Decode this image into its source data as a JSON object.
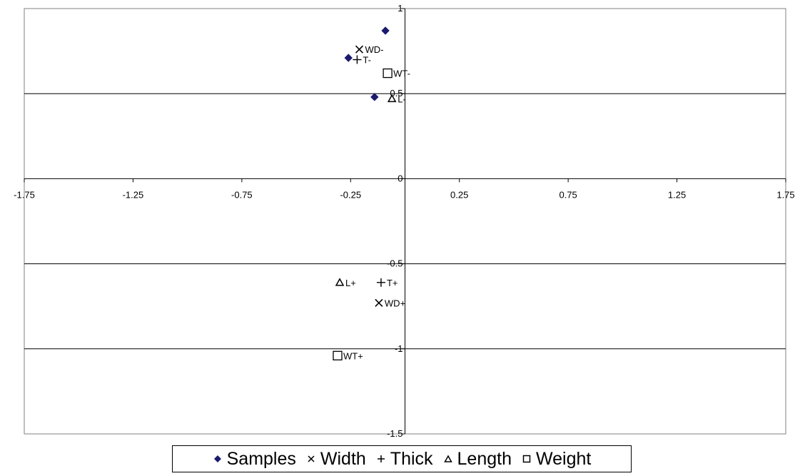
{
  "chart_data": {
    "type": "scatter",
    "title": "",
    "xlabel": "",
    "ylabel": "",
    "xlim": [
      -1.75,
      1.75
    ],
    "ylim": [
      -1.5,
      1
    ],
    "x_ticks": [
      -1.75,
      -1.25,
      -0.75,
      -0.25,
      0.25,
      0.75,
      1.25,
      1.75
    ],
    "x_tick_labels": [
      "-1.75",
      "-1.25",
      "-0.75",
      "-0.25",
      "0.25",
      "0.75",
      "1.25",
      "1.75"
    ],
    "y_ticks": [
      -1.5,
      -1,
      -0.5,
      0,
      0.5,
      1
    ],
    "y_tick_labels": [
      "-1.5",
      "-1",
      "-0.5",
      "0",
      "0.5",
      "1"
    ],
    "y_gridlines": [
      -1,
      -0.5,
      0.5
    ],
    "legend_position": "bottom",
    "series": [
      {
        "name": "Samples",
        "marker": "diamond",
        "color": "#1a1a6e",
        "points": [
          {
            "x": -0.09,
            "y": 0.87,
            "label": ""
          },
          {
            "x": -0.26,
            "y": 0.71,
            "label": ""
          },
          {
            "x": -0.14,
            "y": 0.48,
            "label": ""
          }
        ]
      },
      {
        "name": "Width",
        "marker": "x",
        "color": "#000000",
        "points": [
          {
            "x": -0.21,
            "y": 0.76,
            "label": "WD-"
          },
          {
            "x": -0.12,
            "y": -0.73,
            "label": "WD+"
          }
        ]
      },
      {
        "name": "Thick",
        "marker": "plus",
        "color": "#000000",
        "points": [
          {
            "x": -0.22,
            "y": 0.7,
            "label": "T-"
          },
          {
            "x": -0.11,
            "y": -0.61,
            "label": "T+"
          }
        ]
      },
      {
        "name": "Length",
        "marker": "triangle",
        "color": "#000000",
        "points": [
          {
            "x": -0.06,
            "y": 0.47,
            "label": "L-"
          },
          {
            "x": -0.3,
            "y": -0.61,
            "label": "L+"
          }
        ]
      },
      {
        "name": "Weight",
        "marker": "square",
        "color": "#000000",
        "points": [
          {
            "x": -0.08,
            "y": 0.62,
            "label": "WT-"
          },
          {
            "x": -0.31,
            "y": -1.04,
            "label": "WT+"
          }
        ]
      }
    ]
  },
  "legend": {
    "items": [
      {
        "label": "Samples",
        "icon": "diamond-icon"
      },
      {
        "label": "Width",
        "icon": "x-icon"
      },
      {
        "label": "Thick",
        "icon": "plus-icon"
      },
      {
        "label": "Length",
        "icon": "triangle-icon"
      },
      {
        "label": "Weight",
        "icon": "square-icon"
      }
    ]
  }
}
